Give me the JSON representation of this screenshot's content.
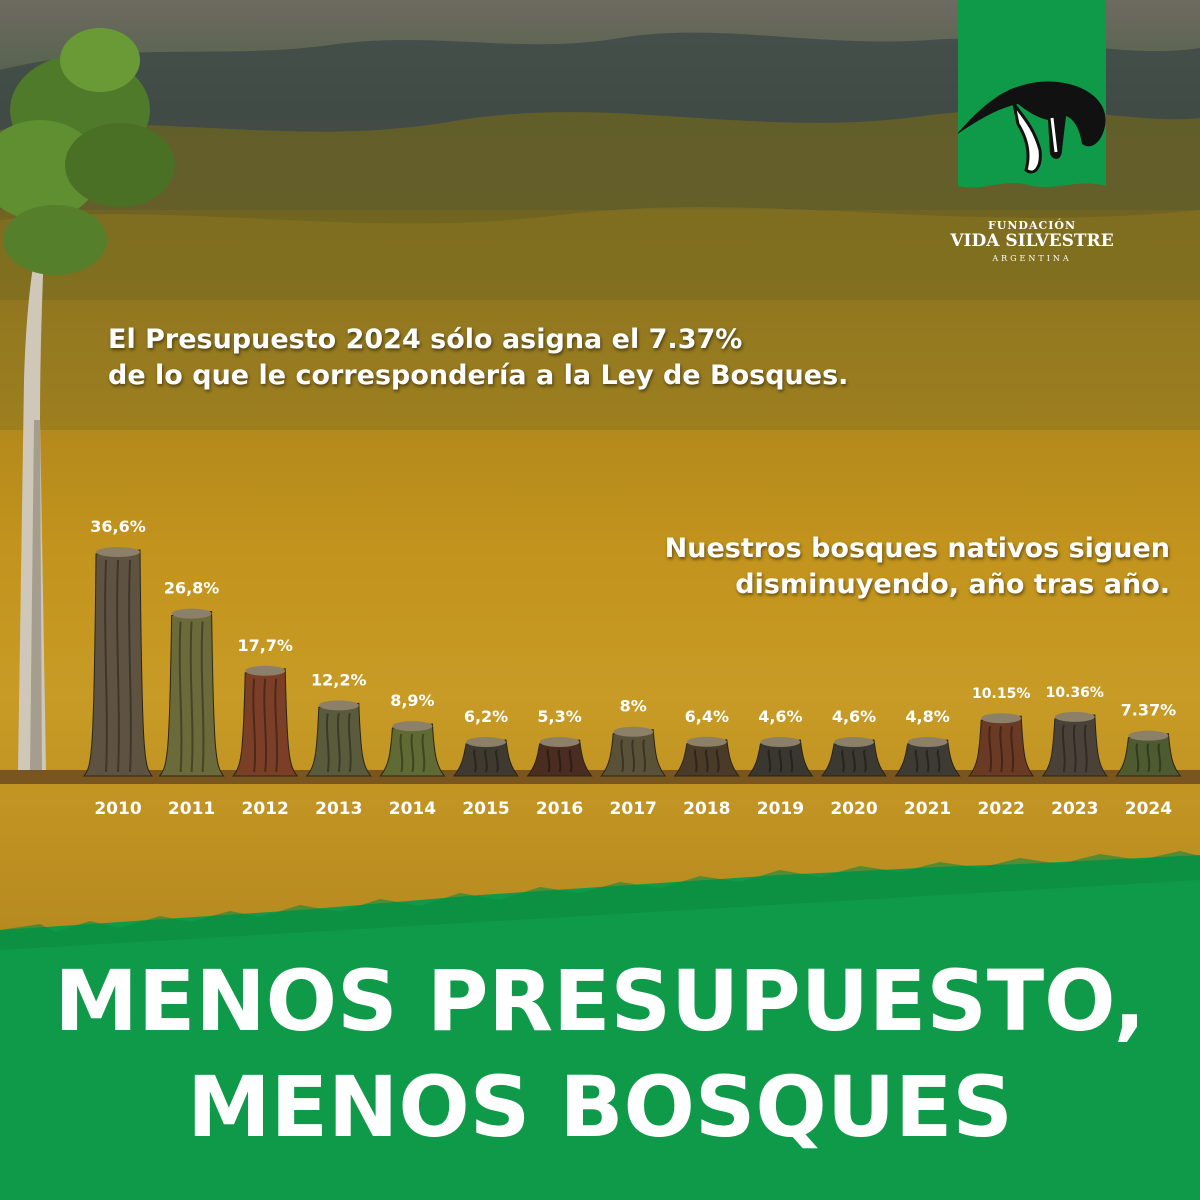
{
  "headline": {
    "line1": "El Presupuesto 2024 sólo asigna el 7.37%",
    "line2": "de lo que le correspondería a la Ley de Bosques."
  },
  "subtitle": {
    "line1": "Nuestros bosques nativos siguen",
    "line2": "disminuyendo, año tras año."
  },
  "logo": {
    "line1": "FUNDACIÓN",
    "line2": "VIDA SILVESTRE",
    "line3": "ARGENTINA"
  },
  "banner": {
    "line1": "MENOS PRESUPUESTO,",
    "line2": "MENOS BOSQUES"
  },
  "colors": {
    "brand_green": "#0e9a48",
    "text": "#ffffff"
  },
  "chart_data": {
    "type": "bar",
    "categories": [
      "2010",
      "2011",
      "2012",
      "2013",
      "2014",
      "2015",
      "2016",
      "2017",
      "2018",
      "2019",
      "2020",
      "2021",
      "2022",
      "2023",
      "2024"
    ],
    "values": [
      36.6,
      26.8,
      17.7,
      12.2,
      8.9,
      6.2,
      5.3,
      8,
      6.4,
      4.6,
      4.6,
      4.8,
      10.15,
      10.36,
      7.37
    ],
    "value_labels": [
      "36,6%",
      "26,8%",
      "17,7%",
      "12,2%",
      "8,9%",
      "6,2%",
      "5,3%",
      "8%",
      "6,4%",
      "4,6%",
      "4,6%",
      "4,8%",
      "10.15%",
      "10.36%",
      "7.37%"
    ],
    "unit": "%",
    "mark_style": "tree stumps",
    "title": "",
    "xlabel": "",
    "ylabel": ""
  }
}
